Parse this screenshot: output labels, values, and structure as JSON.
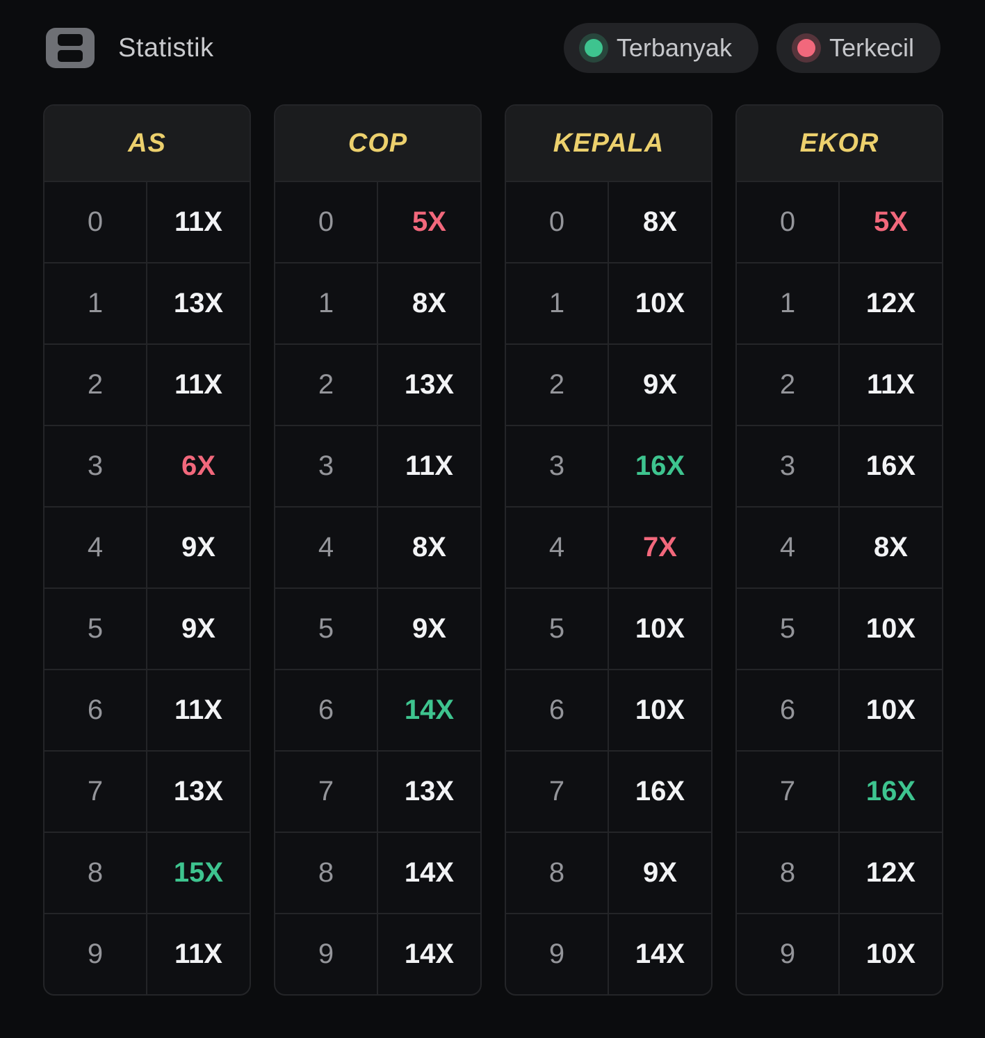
{
  "header": {
    "title": "Statistik",
    "legend": [
      {
        "id": "most",
        "label": "Terbanyak",
        "dot_color": "#3ec48f"
      },
      {
        "id": "least",
        "label": "Terkecil",
        "dot_color": "#f2687c"
      }
    ]
  },
  "colors": {
    "background": "#0b0c0e",
    "cell_background": "#0e0f12",
    "table_header_background": "#1b1c1e",
    "border": "#242528",
    "table_title_yellow": "#ecd06d",
    "most_green": "#3ec48f",
    "least_red": "#f2687c",
    "digit_gray": "#94959a",
    "value_white": "#f2f3f5"
  },
  "chart_data": {
    "type": "table",
    "tables": [
      {
        "title": "AS",
        "rows": [
          {
            "digit": "0",
            "value": "11X",
            "highlight": null
          },
          {
            "digit": "1",
            "value": "13X",
            "highlight": null
          },
          {
            "digit": "2",
            "value": "11X",
            "highlight": null
          },
          {
            "digit": "3",
            "value": "6X",
            "highlight": "least"
          },
          {
            "digit": "4",
            "value": "9X",
            "highlight": null
          },
          {
            "digit": "5",
            "value": "9X",
            "highlight": null
          },
          {
            "digit": "6",
            "value": "11X",
            "highlight": null
          },
          {
            "digit": "7",
            "value": "13X",
            "highlight": null
          },
          {
            "digit": "8",
            "value": "15X",
            "highlight": "most"
          },
          {
            "digit": "9",
            "value": "11X",
            "highlight": null
          }
        ]
      },
      {
        "title": "COP",
        "rows": [
          {
            "digit": "0",
            "value": "5X",
            "highlight": "least"
          },
          {
            "digit": "1",
            "value": "8X",
            "highlight": null
          },
          {
            "digit": "2",
            "value": "13X",
            "highlight": null
          },
          {
            "digit": "3",
            "value": "11X",
            "highlight": null
          },
          {
            "digit": "4",
            "value": "8X",
            "highlight": null
          },
          {
            "digit": "5",
            "value": "9X",
            "highlight": null
          },
          {
            "digit": "6",
            "value": "14X",
            "highlight": "most"
          },
          {
            "digit": "7",
            "value": "13X",
            "highlight": null
          },
          {
            "digit": "8",
            "value": "14X",
            "highlight": null
          },
          {
            "digit": "9",
            "value": "14X",
            "highlight": null
          }
        ]
      },
      {
        "title": "KEPALA",
        "rows": [
          {
            "digit": "0",
            "value": "8X",
            "highlight": null
          },
          {
            "digit": "1",
            "value": "10X",
            "highlight": null
          },
          {
            "digit": "2",
            "value": "9X",
            "highlight": null
          },
          {
            "digit": "3",
            "value": "16X",
            "highlight": "most"
          },
          {
            "digit": "4",
            "value": "7X",
            "highlight": "least"
          },
          {
            "digit": "5",
            "value": "10X",
            "highlight": null
          },
          {
            "digit": "6",
            "value": "10X",
            "highlight": null
          },
          {
            "digit": "7",
            "value": "16X",
            "highlight": null
          },
          {
            "digit": "8",
            "value": "9X",
            "highlight": null
          },
          {
            "digit": "9",
            "value": "14X",
            "highlight": null
          }
        ]
      },
      {
        "title": "EKOR",
        "rows": [
          {
            "digit": "0",
            "value": "5X",
            "highlight": "least"
          },
          {
            "digit": "1",
            "value": "12X",
            "highlight": null
          },
          {
            "digit": "2",
            "value": "11X",
            "highlight": null
          },
          {
            "digit": "3",
            "value": "16X",
            "highlight": null
          },
          {
            "digit": "4",
            "value": "8X",
            "highlight": null
          },
          {
            "digit": "5",
            "value": "10X",
            "highlight": null
          },
          {
            "digit": "6",
            "value": "10X",
            "highlight": null
          },
          {
            "digit": "7",
            "value": "16X",
            "highlight": "most"
          },
          {
            "digit": "8",
            "value": "12X",
            "highlight": null
          },
          {
            "digit": "9",
            "value": "10X",
            "highlight": null
          }
        ]
      }
    ]
  }
}
